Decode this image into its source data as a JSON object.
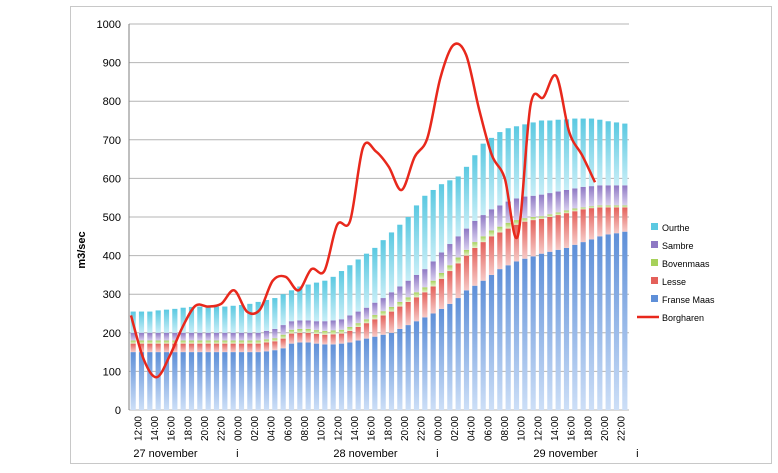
{
  "chart_data": {
    "type": "bar",
    "ylabel": "m3/sec",
    "ylim": [
      0,
      1000
    ],
    "yticks": [
      0,
      100,
      200,
      300,
      400,
      500,
      600,
      700,
      800,
      900,
      1000
    ],
    "grid": true,
    "legend_position": "right",
    "x_tick_labels": [
      "12:00",
      "14:00",
      "16:00",
      "18:00",
      "20:00",
      "22:00",
      "00:00",
      "02:00",
      "04:00",
      "06:00",
      "08:00",
      "10:00",
      "12:00",
      "14:00",
      "16:00",
      "18:00",
      "20:00",
      "22:00",
      "00:00",
      "02:00",
      "04:00",
      "06:00",
      "08:00",
      "10:00",
      "12:00",
      "14:00",
      "16:00",
      "18:00",
      "20:00",
      "22:00"
    ],
    "date_labels": [
      {
        "text": "27 november",
        "tick_index": 0
      },
      {
        "text": "28 november",
        "tick_index": 12
      },
      {
        "text": "29 november",
        "tick_index": 24
      }
    ],
    "separator_labels": [
      {
        "text": "i",
        "tick_index": 6
      },
      {
        "text": "i",
        "tick_index": 18
      },
      {
        "text": "i",
        "tick_index": 30
      }
    ],
    "bar_count": 60,
    "bar_totals": [
      255,
      255,
      255,
      258,
      260,
      262,
      265,
      267,
      268,
      268,
      268,
      268,
      270,
      272,
      275,
      280,
      285,
      290,
      300,
      310,
      320,
      325,
      330,
      335,
      345,
      360,
      375,
      390,
      405,
      420,
      440,
      460,
      480,
      500,
      530,
      555,
      570,
      585,
      595,
      605,
      630,
      660,
      690,
      705,
      720,
      730,
      735,
      740,
      745,
      750,
      750,
      752,
      753,
      755,
      755,
      755,
      752,
      748,
      745,
      742
    ],
    "series": [
      {
        "name": "Ourthe",
        "color": "#5bc9e1",
        "light_color": "#c8eef7"
      },
      {
        "name": "Sambre",
        "color": "#8e78c4",
        "light_color": "#d8cfee"
      },
      {
        "name": "Bovenmaas",
        "color": "#a6d15a",
        "light_color": "#e3f2c8"
      },
      {
        "name": "Lesse",
        "color": "#e4605a",
        "light_color": "#f6cac7"
      },
      {
        "name": "Franse Maas",
        "color": "#5e8fd8",
        "light_color": "#cddff7"
      }
    ],
    "stack_tops": {
      "Franse Maas": [
        150,
        150,
        150,
        150,
        150,
        150,
        150,
        150,
        150,
        150,
        150,
        150,
        150,
        150,
        150,
        150,
        152,
        155,
        160,
        172,
        175,
        175,
        172,
        170,
        170,
        172,
        175,
        180,
        185,
        190,
        195,
        200,
        210,
        220,
        230,
        240,
        250,
        262,
        275,
        290,
        310,
        322,
        335,
        350,
        365,
        375,
        385,
        392,
        398,
        405,
        410,
        415,
        420,
        428,
        435,
        442,
        450,
        455,
        458,
        462
      ],
      "Lesse": [
        172,
        172,
        172,
        172,
        172,
        172,
        172,
        172,
        172,
        172,
        172,
        172,
        172,
        172,
        172,
        172,
        175,
        178,
        185,
        198,
        200,
        200,
        197,
        195,
        196,
        198,
        205,
        215,
        225,
        235,
        245,
        255,
        268,
        280,
        292,
        305,
        320,
        340,
        360,
        380,
        400,
        420,
        435,
        450,
        460,
        470,
        480,
        488,
        492,
        495,
        500,
        505,
        510,
        515,
        520,
        523,
        525,
        525,
        525,
        525
      ],
      "Bovenmaas": [
        180,
        180,
        180,
        180,
        180,
        180,
        180,
        180,
        180,
        180,
        180,
        180,
        180,
        180,
        180,
        180,
        183,
        186,
        195,
        208,
        210,
        210,
        207,
        205,
        206,
        208,
        215,
        225,
        235,
        246,
        256,
        267,
        280,
        292,
        305,
        318,
        335,
        355,
        375,
        395,
        415,
        435,
        450,
        465,
        475,
        485,
        492,
        497,
        500,
        502,
        507,
        512,
        517,
        522,
        525,
        528,
        530,
        530,
        530,
        530
      ],
      "Sambre": [
        200,
        200,
        200,
        200,
        200,
        200,
        200,
        200,
        200,
        200,
        200,
        200,
        200,
        200,
        200,
        200,
        205,
        210,
        220,
        230,
        232,
        232,
        230,
        230,
        232,
        235,
        245,
        255,
        265,
        278,
        290,
        305,
        320,
        335,
        350,
        365,
        385,
        408,
        430,
        450,
        470,
        490,
        505,
        520,
        530,
        540,
        548,
        553,
        555,
        558,
        562,
        566,
        570,
        574,
        578,
        580,
        582,
        582,
        582,
        582
      ],
      "Ourthe": [
        255,
        255,
        255,
        258,
        260,
        262,
        265,
        267,
        268,
        268,
        268,
        268,
        270,
        272,
        275,
        280,
        285,
        290,
        300,
        310,
        320,
        325,
        330,
        335,
        345,
        360,
        375,
        390,
        405,
        420,
        440,
        460,
        480,
        500,
        530,
        555,
        570,
        585,
        595,
        605,
        630,
        660,
        690,
        705,
        720,
        730,
        735,
        740,
        745,
        750,
        750,
        752,
        753,
        755,
        755,
        755,
        752,
        748,
        745,
        742
      ]
    },
    "line_series": {
      "name": "Borgharen",
      "color": "#e8281c",
      "values": [
        245,
        130,
        85,
        140,
        215,
        270,
        268,
        275,
        310,
        255,
        260,
        335,
        345,
        310,
        365,
        360,
        480,
        490,
        680,
        670,
        630,
        570,
        655,
        705,
        860,
        945,
        920,
        780,
        660,
        600,
        450,
        790,
        810,
        865,
        720,
        660,
        590
      ]
    },
    "legend": [
      "Ourthe",
      "Sambre",
      "Bovenmaas",
      "Lesse",
      "Franse Maas",
      "Borgharen"
    ]
  }
}
